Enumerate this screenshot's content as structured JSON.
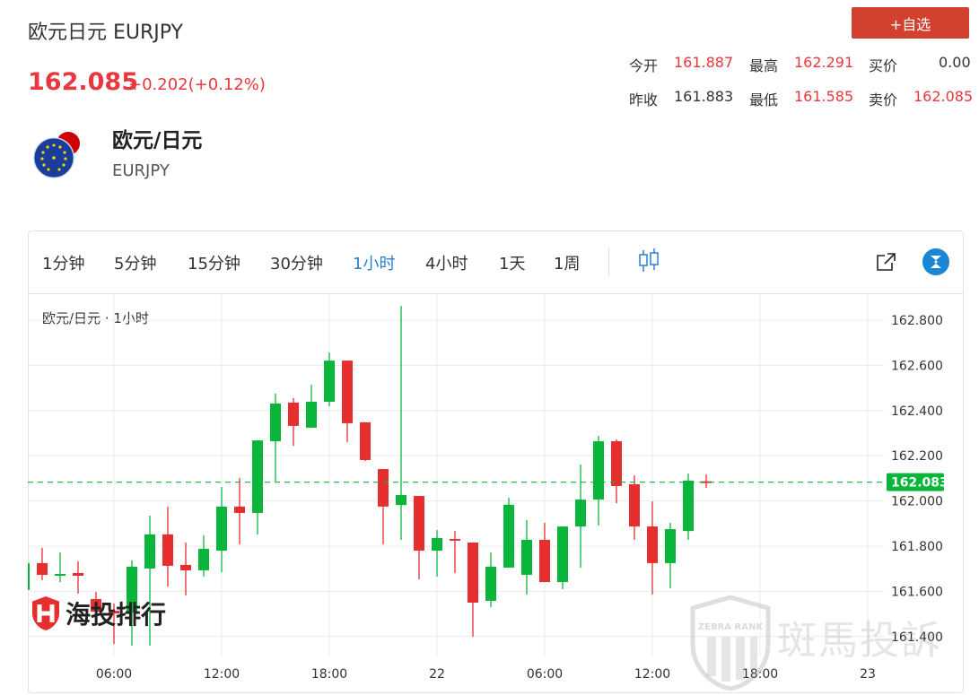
{
  "header": {
    "title": "欧元日元 EURJPY",
    "price": "162.085",
    "change": "+0.202(+0.12%)",
    "favorite_label": "+自选",
    "stats": [
      {
        "label": "今开",
        "value": "161.887",
        "color": "red"
      },
      {
        "label": "最高",
        "value": "162.291",
        "color": "red"
      },
      {
        "label": "买价",
        "value": "0.00",
        "color": "neutral"
      },
      {
        "label": "昨收",
        "value": "161.883",
        "color": "neutral"
      },
      {
        "label": "最低",
        "value": "161.585",
        "color": "red"
      },
      {
        "label": "卖价",
        "value": "162.085",
        "color": "red"
      }
    ],
    "pair_name": "欧元/日元",
    "pair_symbol": "EURJPY",
    "flag_icon": "eu-jp-flag-icon"
  },
  "toolbar": {
    "intervals": [
      "1分钟",
      "5分钟",
      "15分钟",
      "30分钟",
      "1小时",
      "4小时",
      "1天",
      "1周"
    ],
    "active_interval": "1小时",
    "icons": [
      "candlestick-icon",
      "external-link-icon",
      "brand-z-icon"
    ]
  },
  "watermarks": {
    "left": "海投排行",
    "right": "斑馬投訴",
    "right_badge": "ZEBRA RANK"
  },
  "colors": {
    "up": "#0ab53b",
    "down": "#e62e2e",
    "accent": "#2a7fd4",
    "price_red": "#e8383d",
    "fav_button": "#d2402f"
  },
  "chart_data": {
    "type": "candlestick",
    "legend": "欧元/日元 · 1小时",
    "current_price": "162.083",
    "ylim": [
      161.35,
      162.9
    ],
    "y_ticks": [
      "161.400",
      "161.600",
      "161.800",
      "162.000",
      "162.200",
      "162.400",
      "162.600",
      "162.800"
    ],
    "x_ticks": [
      {
        "t": "21 06:00",
        "label": "06:00"
      },
      {
        "t": "21 12:00",
        "label": "12:00"
      },
      {
        "t": "21 18:00",
        "label": "18:00"
      },
      {
        "t": "22 00:00",
        "label": "22"
      },
      {
        "t": "22 06:00",
        "label": "06:00"
      },
      {
        "t": "22 12:00",
        "label": "12:00"
      },
      {
        "t": "22 18:00",
        "label": "18:00"
      },
      {
        "t": "23 00:00",
        "label": "23"
      }
    ],
    "grid": true,
    "candles": [
      {
        "t": "21 01:00",
        "o": 161.606,
        "h": 161.73,
        "l": 161.6,
        "c": 161.725
      },
      {
        "t": "21 02:00",
        "o": 161.725,
        "h": 161.792,
        "l": 161.649,
        "c": 161.673
      },
      {
        "t": "21 03:00",
        "o": 161.675,
        "h": 161.772,
        "l": 161.641,
        "c": 161.677
      },
      {
        "t": "21 04:00",
        "o": 161.681,
        "h": 161.733,
        "l": 161.59,
        "c": 161.669
      },
      {
        "t": "21 05:00",
        "o": 161.566,
        "h": 161.598,
        "l": 161.47,
        "c": 161.51
      },
      {
        "t": "21 06:00",
        "o": 161.514,
        "h": 161.546,
        "l": 161.367,
        "c": 161.502
      },
      {
        "t": "21 07:00",
        "o": 161.506,
        "h": 161.737,
        "l": 161.359,
        "c": 161.709
      },
      {
        "t": "21 08:00",
        "o": 161.701,
        "h": 161.935,
        "l": 161.359,
        "c": 161.852
      },
      {
        "t": "21 09:00",
        "o": 161.852,
        "h": 161.975,
        "l": 161.621,
        "c": 161.713
      },
      {
        "t": "21 10:00",
        "o": 161.717,
        "h": 161.816,
        "l": 161.582,
        "c": 161.693
      },
      {
        "t": "21 11:00",
        "o": 161.693,
        "h": 161.848,
        "l": 161.665,
        "c": 161.788
      },
      {
        "t": "21 12:00",
        "o": 161.78,
        "h": 162.062,
        "l": 161.685,
        "c": 161.975
      },
      {
        "t": "21 13:00",
        "o": 161.975,
        "h": 162.102,
        "l": 161.808,
        "c": 161.947
      },
      {
        "t": "21 14:00",
        "o": 161.947,
        "h": 162.268,
        "l": 161.852,
        "c": 162.268
      },
      {
        "t": "21 15:00",
        "o": 162.264,
        "h": 162.475,
        "l": 162.086,
        "c": 162.431
      },
      {
        "t": "21 16:00",
        "o": 162.435,
        "h": 162.455,
        "l": 162.244,
        "c": 162.332
      },
      {
        "t": "21 17:00",
        "o": 162.324,
        "h": 162.514,
        "l": 162.324,
        "c": 162.439
      },
      {
        "t": "21 18:00",
        "o": 162.439,
        "h": 162.657,
        "l": 162.419,
        "c": 162.621
      },
      {
        "t": "21 19:00",
        "o": 162.621,
        "h": 162.621,
        "l": 162.26,
        "c": 162.344
      },
      {
        "t": "21 20:00",
        "o": 162.348,
        "h": 162.348,
        "l": 162.177,
        "c": 162.181
      },
      {
        "t": "21 21:00",
        "o": 162.141,
        "h": 162.141,
        "l": 161.808,
        "c": 161.975
      },
      {
        "t": "21 22:00",
        "o": 161.982,
        "h": 162.863,
        "l": 161.828,
        "c": 162.026
      },
      {
        "t": "21 23:00",
        "o": 162.022,
        "h": 162.022,
        "l": 161.653,
        "c": 161.78
      },
      {
        "t": "22 00:00",
        "o": 161.78,
        "h": 161.871,
        "l": 161.665,
        "c": 161.836
      },
      {
        "t": "22 01:00",
        "o": 161.832,
        "h": 161.867,
        "l": 161.681,
        "c": 161.828
      },
      {
        "t": "22 02:00",
        "o": 161.816,
        "h": 161.816,
        "l": 161.399,
        "c": 161.55
      },
      {
        "t": "22 03:00",
        "o": 161.558,
        "h": 161.772,
        "l": 161.53,
        "c": 161.709
      },
      {
        "t": "22 04:00",
        "o": 161.705,
        "h": 162.014,
        "l": 161.705,
        "c": 161.983
      },
      {
        "t": "22 05:00",
        "o": 161.673,
        "h": 161.915,
        "l": 161.586,
        "c": 161.828
      },
      {
        "t": "22 06:00",
        "o": 161.828,
        "h": 161.903,
        "l": 161.641,
        "c": 161.641
      },
      {
        "t": "22 07:00",
        "o": 161.641,
        "h": 161.887,
        "l": 161.61,
        "c": 161.887
      },
      {
        "t": "22 08:00",
        "o": 161.887,
        "h": 162.161,
        "l": 161.705,
        "c": 162.006
      },
      {
        "t": "22 09:00",
        "o": 162.006,
        "h": 162.288,
        "l": 161.891,
        "c": 162.264
      },
      {
        "t": "22 10:00",
        "o": 162.264,
        "h": 162.272,
        "l": 161.99,
        "c": 162.066
      },
      {
        "t": "22 11:00",
        "o": 162.074,
        "h": 162.113,
        "l": 161.828,
        "c": 161.887
      },
      {
        "t": "22 12:00",
        "o": 161.887,
        "h": 161.998,
        "l": 161.586,
        "c": 161.725
      },
      {
        "t": "22 13:00",
        "o": 161.725,
        "h": 161.903,
        "l": 161.614,
        "c": 161.875
      },
      {
        "t": "22 14:00",
        "o": 161.867,
        "h": 162.121,
        "l": 161.828,
        "c": 162.09
      },
      {
        "t": "22 15:00",
        "o": 162.087,
        "h": 162.117,
        "l": 162.058,
        "c": 162.083
      }
    ]
  }
}
